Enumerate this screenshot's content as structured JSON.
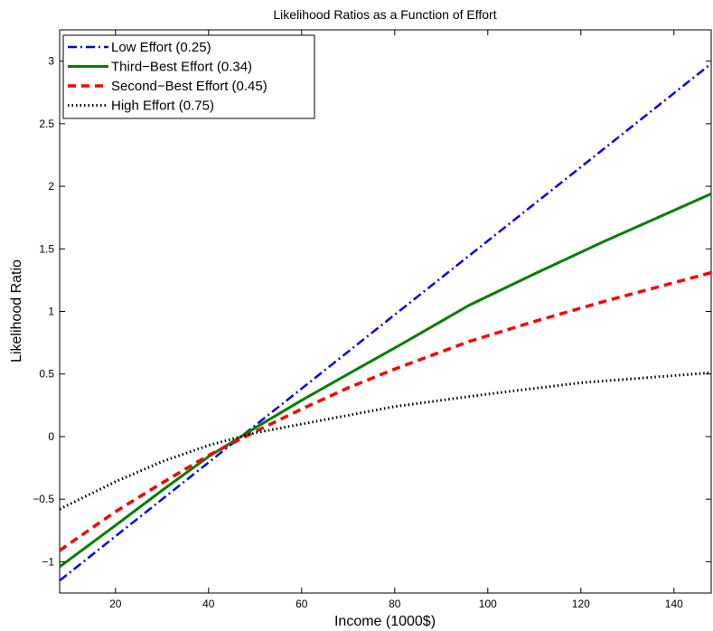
{
  "chart_data": {
    "type": "line",
    "title": "Likelihood Ratios as a Function of Effort",
    "xlabel": "Income (1000$)",
    "ylabel": "Likelihood Ratio",
    "xlim": [
      8,
      148
    ],
    "ylim": [
      -1.25,
      3.25
    ],
    "x_ticks": [
      20,
      40,
      60,
      80,
      100,
      120,
      140
    ],
    "y_ticks": [
      -1,
      -0.5,
      0,
      0.5,
      1,
      1.5,
      2,
      2.5,
      3
    ],
    "grid": false,
    "legend_position": "top-left",
    "series": [
      {
        "name": "Low Effort (0.25)",
        "color": "#0000ff",
        "style": "dashdot",
        "x": [
          8,
          148
        ],
        "y": [
          -1.15,
          2.98
        ]
      },
      {
        "name": "Third−Best Effort (0.34)",
        "color": "#008000",
        "style": "solid",
        "x": [
          8,
          20,
          30,
          40,
          50,
          60,
          70,
          82,
          96,
          110,
          125,
          148
        ],
        "y": [
          -1.04,
          -0.71,
          -0.43,
          -0.16,
          0.07,
          0.29,
          0.5,
          0.75,
          1.05,
          1.3,
          1.56,
          1.94
        ]
      },
      {
        "name": "Second−Best Effort (0.45)",
        "color": "#ff0000",
        "style": "dashed",
        "x": [
          8,
          20,
          30,
          40,
          50,
          60,
          70,
          80,
          96,
          110,
          125,
          148
        ],
        "y": [
          -0.91,
          -0.6,
          -0.37,
          -0.15,
          0.04,
          0.22,
          0.39,
          0.54,
          0.76,
          0.92,
          1.08,
          1.31
        ]
      },
      {
        "name": "High Effort (0.75)",
        "color": "#000000",
        "style": "dotted",
        "x": [
          8,
          20,
          30,
          40,
          50,
          60,
          80,
          100,
          120,
          148
        ],
        "y": [
          -0.58,
          -0.36,
          -0.2,
          -0.07,
          0.03,
          0.1,
          0.24,
          0.34,
          0.43,
          0.51
        ]
      }
    ]
  }
}
